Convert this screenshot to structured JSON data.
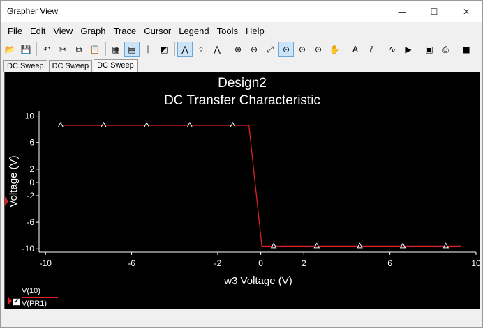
{
  "window": {
    "title": "Grapher View",
    "controls": {
      "minimize": "—",
      "maximize": "☐",
      "close": "✕"
    }
  },
  "menu": [
    "File",
    "Edit",
    "View",
    "Graph",
    "Trace",
    "Cursor",
    "Legend",
    "Tools",
    "Help"
  ],
  "toolbar": [
    {
      "name": "open-icon",
      "glyph": "📂",
      "active": false
    },
    {
      "name": "save-icon",
      "glyph": "💾",
      "active": false
    },
    {
      "sep": true
    },
    {
      "name": "undo-icon",
      "glyph": "↶",
      "active": false
    },
    {
      "name": "cut-icon",
      "glyph": "✂",
      "active": false
    },
    {
      "name": "copy-icon",
      "glyph": "⧉",
      "active": false
    },
    {
      "name": "paste-icon",
      "glyph": "📋",
      "active": false
    },
    {
      "sep": true
    },
    {
      "name": "grid-icon",
      "glyph": "▦",
      "active": false
    },
    {
      "name": "legend-toggle-icon",
      "glyph": "▤",
      "active": true
    },
    {
      "name": "cursors-icon",
      "glyph": "⫼",
      "active": false
    },
    {
      "name": "overlay-icon",
      "glyph": "◩",
      "active": false
    },
    {
      "sep": true
    },
    {
      "name": "show-line-icon",
      "glyph": "⋀",
      "active": true
    },
    {
      "name": "show-markers-icon",
      "glyph": "⁘",
      "active": false
    },
    {
      "name": "line-markers-icon",
      "glyph": "⋀",
      "active": false
    },
    {
      "sep": true
    },
    {
      "name": "zoom-in-icon",
      "glyph": "⊕",
      "active": false
    },
    {
      "name": "zoom-out-icon",
      "glyph": "⊖",
      "active": false
    },
    {
      "name": "zoom-fit-icon",
      "glyph": "⤢",
      "active": false
    },
    {
      "name": "zoom-area-icon",
      "glyph": "⊙",
      "active": true
    },
    {
      "name": "zoom-x-icon",
      "glyph": "⊙",
      "active": false
    },
    {
      "name": "zoom-y-icon",
      "glyph": "⊙",
      "active": false
    },
    {
      "name": "pan-hand-icon",
      "glyph": "✋",
      "active": false
    },
    {
      "sep": true
    },
    {
      "name": "text-icon",
      "glyph": "A",
      "active": false
    },
    {
      "name": "label-icon",
      "glyph": "ℓ",
      "active": false
    },
    {
      "sep": true
    },
    {
      "name": "add-trace-icon",
      "glyph": "∿",
      "active": false
    },
    {
      "name": "export-icon",
      "glyph": "▶",
      "active": false
    },
    {
      "sep": true
    },
    {
      "name": "properties-icon",
      "glyph": "▣",
      "active": false
    },
    {
      "name": "print-icon",
      "glyph": "⎙",
      "active": false
    },
    {
      "sep": true
    },
    {
      "name": "stop-icon",
      "glyph": "■",
      "active": false
    }
  ],
  "tabs": [
    {
      "label": "DC Sweep",
      "active": false
    },
    {
      "label": "DC Sweep",
      "active": false
    },
    {
      "label": "DC Sweep",
      "active": true
    }
  ],
  "legend": {
    "entries": [
      "V(10)",
      "V(PR1)"
    ]
  },
  "colors": {
    "plot_bg": "#000000",
    "trace": "#e02020",
    "text": "#ffffff"
  },
  "chart_data": {
    "type": "line",
    "title": "Design2",
    "subtitle": "DC Transfer Characteristic",
    "xlabel": "w3 Voltage (V)",
    "ylabel": "Voltage (V)",
    "xlim": [
      -10.3,
      10
    ],
    "ylim": [
      -10.5,
      10.8
    ],
    "xticks": [
      -10,
      -6,
      -2,
      0,
      2,
      6,
      10
    ],
    "yticks": [
      10,
      6,
      2,
      0,
      -2,
      -6,
      -10
    ],
    "series": [
      {
        "name": "V(PR1)",
        "x": [
          -9.3,
          -5.5,
          -0.55,
          0.05,
          9.3
        ],
        "y": [
          8.6,
          8.6,
          8.6,
          -9.6,
          -9.6
        ]
      }
    ],
    "markers": {
      "x": [
        -9.3,
        -7.3,
        -5.3,
        -3.3,
        -1.3,
        0.6,
        2.6,
        4.6,
        6.6,
        8.6
      ],
      "y": [
        8.6,
        8.6,
        8.6,
        8.6,
        8.6,
        -9.6,
        -9.6,
        -9.6,
        -9.6,
        -9.6
      ]
    }
  }
}
